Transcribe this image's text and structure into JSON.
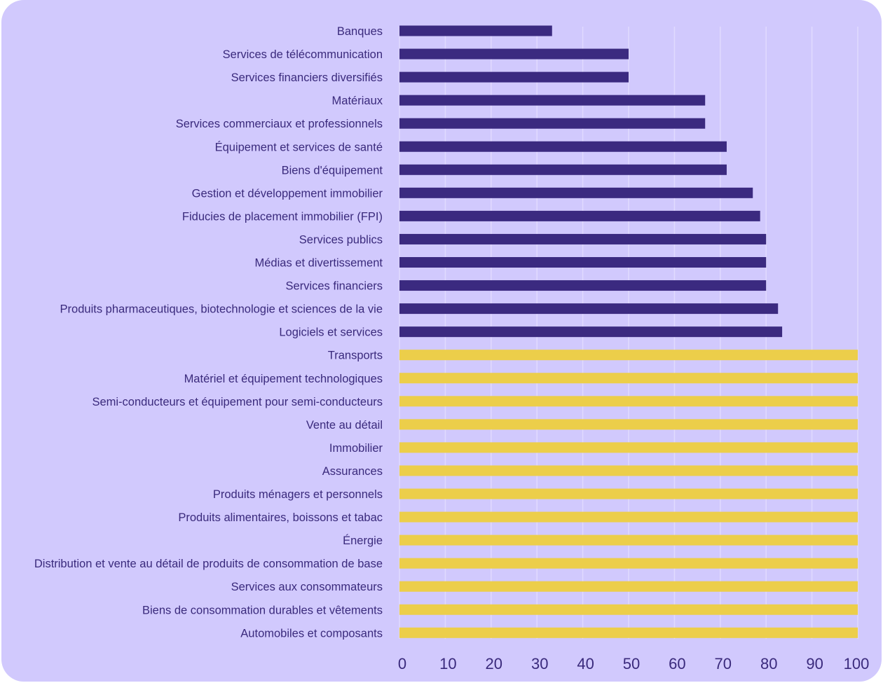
{
  "chart_data": {
    "type": "bar",
    "orientation": "horizontal",
    "title": "",
    "xlabel": "",
    "ylabel": "",
    "xlim": [
      0,
      100
    ],
    "grid": true,
    "x_ticks": [
      "0",
      "10",
      "20",
      "30",
      "40",
      "50",
      "60",
      "70",
      "80",
      "90",
      "100"
    ],
    "categories": [
      "Banques",
      "Services de télécommunication",
      "Services financiers diversifiés",
      "Matériaux",
      "Services commerciaux et professionnels",
      "Équipement et services de santé",
      "Biens d'équipement",
      "Gestion et développement immobilier",
      "Fiducies de placement immobilier (FPI)",
      "Services publics",
      "Médias et divertissement",
      "Services financiers",
      "Produits pharmaceutiques, biotechnologie et sciences de la vie",
      "Logiciels et services",
      "Transports",
      "Matériel et équipement technologiques",
      "Semi-conducteurs et équipement pour semi-conducteurs",
      "Vente au détail",
      "Immobilier",
      "Assurances",
      "Produits ménagers et personnels",
      "Produits alimentaires, boissons et tabac",
      "Énergie",
      "Distribution et vente au détail de produits de consommation de base",
      "Services aux consommateurs",
      "Biens de consommation durables et vêtements",
      "Automobiles et composants"
    ],
    "values": [
      33.3,
      50,
      50,
      66.7,
      66.7,
      71.4,
      71.4,
      77.1,
      78.7,
      80,
      80,
      80,
      82.6,
      83.5,
      100,
      100,
      100,
      100,
      100,
      100,
      100,
      100,
      100,
      100,
      100,
      100,
      100
    ],
    "colors": {
      "below_100": "#3b2a80",
      "at_100": "#ecce4a",
      "background": "#d1c9fd",
      "text": "#3a2a7c",
      "grid": "#e6e0ff"
    }
  }
}
